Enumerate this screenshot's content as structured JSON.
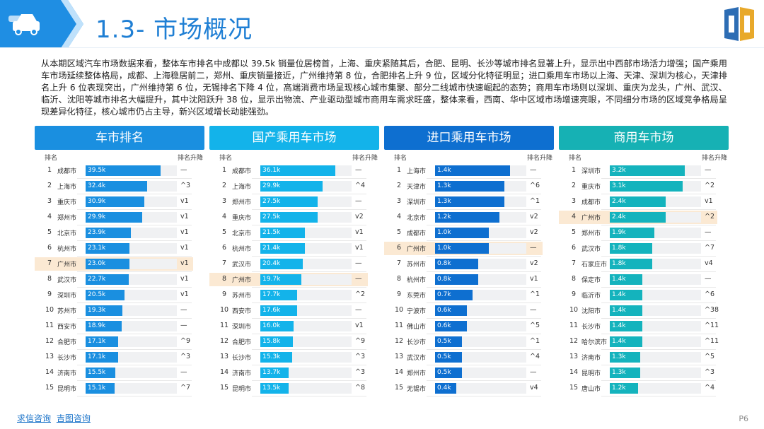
{
  "header": {
    "title": "1.3- 市场概况",
    "colors": {
      "accent": "#1f7fd4",
      "band": "#1f8ee3"
    }
  },
  "intro": "从本期区域汽车市场数据来看，整体车市排名中成都以 39.5k 销量位居榜首，上海、重庆紧随其后，合肥、昆明、长沙等城市排名显著上升，显示出中西部市场活力增强；国产乘用车市场延续整体格局，成都、上海稳居前二，郑州、重庆销量接近，广州维持第 8 位，合肥排名上升 9 位，区域分化特征明显；进口乘用车市场以上海、天津、深圳为核心，天津排名上升 6 位表现突出，广州维持第 6 位，无锡排名下降 4 位，高端消费市场呈现核心城市集聚、部分二线城市快速崛起的态势；商用车市场则以深圳、重庆为龙头，广州、武汉、临沂、沈阳等城市排名大幅提升，其中沈阳跃升 38 位，显示出物流、产业驱动型城市商用车需求旺盛，整体来看，西南、华中区域市场增速亮眼，不同细分市场的区域竞争格局呈现差异化特征，核心城市仍占主导，新兴区域增长动能强劲。",
  "col_rank": "排名",
  "col_change": "排名升降",
  "panels": [
    {
      "title": "车市排名",
      "max": 39.5,
      "head_color": "#1a8fe0",
      "bar_color": "#1a8fe0",
      "rows": [
        {
          "rank": "1",
          "city": "成都市",
          "label": "39.5k",
          "value": 39.5,
          "change": "—"
        },
        {
          "rank": "2",
          "city": "上海市",
          "label": "32.4k",
          "value": 32.4,
          "change": "^3"
        },
        {
          "rank": "3",
          "city": "重庆市",
          "label": "30.9k",
          "value": 30.9,
          "change": "v1"
        },
        {
          "rank": "4",
          "city": "郑州市",
          "label": "29.9k",
          "value": 29.9,
          "change": "v1"
        },
        {
          "rank": "5",
          "city": "北京市",
          "label": "23.9k",
          "value": 23.9,
          "change": "v1"
        },
        {
          "rank": "6",
          "city": "杭州市",
          "label": "23.1k",
          "value": 23.1,
          "change": "v1"
        },
        {
          "rank": "7",
          "city": "广州市",
          "label": "23.0k",
          "value": 23.0,
          "change": "v1",
          "highlight": true
        },
        {
          "rank": "8",
          "city": "武汉市",
          "label": "22.7k",
          "value": 22.7,
          "change": "v1"
        },
        {
          "rank": "9",
          "city": "深圳市",
          "label": "20.5k",
          "value": 20.5,
          "change": "v1"
        },
        {
          "rank": "10",
          "city": "苏州市",
          "label": "19.3k",
          "value": 19.3,
          "change": "—"
        },
        {
          "rank": "11",
          "city": "西安市",
          "label": "18.9k",
          "value": 18.9,
          "change": "—"
        },
        {
          "rank": "12",
          "city": "合肥市",
          "label": "17.1k",
          "value": 17.1,
          "change": "^9"
        },
        {
          "rank": "13",
          "city": "长沙市",
          "label": "17.1k",
          "value": 17.1,
          "change": "^3"
        },
        {
          "rank": "14",
          "city": "济南市",
          "label": "15.5k",
          "value": 15.5,
          "change": "—"
        },
        {
          "rank": "15",
          "city": "昆明市",
          "label": "15.1k",
          "value": 15.1,
          "change": "^7"
        }
      ]
    },
    {
      "title": "国产乘用车市场",
      "max": 36.1,
      "head_color": "#13b3ea",
      "bar_color": "#13b3ea",
      "rows": [
        {
          "rank": "1",
          "city": "成都市",
          "label": "36.1k",
          "value": 36.1,
          "change": "—"
        },
        {
          "rank": "2",
          "city": "上海市",
          "label": "29.9k",
          "value": 29.9,
          "change": "^4"
        },
        {
          "rank": "3",
          "city": "郑州市",
          "label": "27.5k",
          "value": 27.5,
          "change": "—"
        },
        {
          "rank": "4",
          "city": "重庆市",
          "label": "27.5k",
          "value": 27.5,
          "change": "v2"
        },
        {
          "rank": "5",
          "city": "北京市",
          "label": "21.5k",
          "value": 21.5,
          "change": "v1"
        },
        {
          "rank": "6",
          "city": "杭州市",
          "label": "21.4k",
          "value": 21.4,
          "change": "v1"
        },
        {
          "rank": "7",
          "city": "武汉市",
          "label": "20.4k",
          "value": 20.4,
          "change": "—"
        },
        {
          "rank": "8",
          "city": "广州市",
          "label": "19.7k",
          "value": 19.7,
          "change": "—",
          "highlight": true
        },
        {
          "rank": "9",
          "city": "苏州市",
          "label": "17.7k",
          "value": 17.7,
          "change": "^2"
        },
        {
          "rank": "10",
          "city": "西安市",
          "label": "17.6k",
          "value": 17.6,
          "change": "—"
        },
        {
          "rank": "11",
          "city": "深圳市",
          "label": "16.0k",
          "value": 16.0,
          "change": "v1"
        },
        {
          "rank": "12",
          "city": "合肥市",
          "label": "15.8k",
          "value": 15.8,
          "change": "^9"
        },
        {
          "rank": "13",
          "city": "长沙市",
          "label": "15.3k",
          "value": 15.3,
          "change": "^3"
        },
        {
          "rank": "14",
          "city": "济南市",
          "label": "13.7k",
          "value": 13.7,
          "change": "^3"
        },
        {
          "rank": "15",
          "city": "昆明市",
          "label": "13.5k",
          "value": 13.5,
          "change": "^8"
        }
      ]
    },
    {
      "title": "进口乘用车市场",
      "max": 1.4,
      "head_color": "#0e6fd0",
      "bar_color": "#0e6fd0",
      "rows": [
        {
          "rank": "1",
          "city": "上海市",
          "label": "1.4k",
          "value": 1.4,
          "change": "—"
        },
        {
          "rank": "2",
          "city": "天津市",
          "label": "1.3k",
          "value": 1.3,
          "change": "^6"
        },
        {
          "rank": "3",
          "city": "深圳市",
          "label": "1.3k",
          "value": 1.3,
          "change": "^1"
        },
        {
          "rank": "4",
          "city": "北京市",
          "label": "1.2k",
          "value": 1.2,
          "change": "v2"
        },
        {
          "rank": "5",
          "city": "成都市",
          "label": "1.0k",
          "value": 1.0,
          "change": "v2"
        },
        {
          "rank": "6",
          "city": "广州市",
          "label": "1.0k",
          "value": 1.0,
          "change": "—",
          "highlight": true
        },
        {
          "rank": "7",
          "city": "苏州市",
          "label": "0.8k",
          "value": 0.8,
          "change": "v2"
        },
        {
          "rank": "8",
          "city": "杭州市",
          "label": "0.8k",
          "value": 0.8,
          "change": "v1"
        },
        {
          "rank": "9",
          "city": "东莞市",
          "label": "0.7k",
          "value": 0.7,
          "change": "^1"
        },
        {
          "rank": "10",
          "city": "宁波市",
          "label": "0.6k",
          "value": 0.6,
          "change": "—"
        },
        {
          "rank": "11",
          "city": "佛山市",
          "label": "0.6k",
          "value": 0.6,
          "change": "^5"
        },
        {
          "rank": "12",
          "city": "长沙市",
          "label": "0.5k",
          "value": 0.5,
          "change": "^1"
        },
        {
          "rank": "13",
          "city": "武汉市",
          "label": "0.5k",
          "value": 0.5,
          "change": "^4"
        },
        {
          "rank": "14",
          "city": "郑州市",
          "label": "0.5k",
          "value": 0.5,
          "change": "—"
        },
        {
          "rank": "15",
          "city": "无锡市",
          "label": "0.4k",
          "value": 0.4,
          "change": "v4"
        }
      ]
    },
    {
      "title": "商用车市场",
      "max": 3.2,
      "head_color": "#16b1b4",
      "bar_color": "#14b3bd",
      "rows": [
        {
          "rank": "1",
          "city": "深圳市",
          "label": "3.2k",
          "value": 3.2,
          "change": "—"
        },
        {
          "rank": "2",
          "city": "重庆市",
          "label": "3.1k",
          "value": 3.1,
          "change": "^2"
        },
        {
          "rank": "3",
          "city": "成都市",
          "label": "2.4k",
          "value": 2.4,
          "change": "v1"
        },
        {
          "rank": "4",
          "city": "广州市",
          "label": "2.4k",
          "value": 2.4,
          "change": "^2",
          "highlight": true
        },
        {
          "rank": "5",
          "city": "郑州市",
          "label": "1.9k",
          "value": 1.9,
          "change": "—"
        },
        {
          "rank": "6",
          "city": "武汉市",
          "label": "1.8k",
          "value": 1.8,
          "change": "^7"
        },
        {
          "rank": "7",
          "city": "石家庄市",
          "label": "1.8k",
          "value": 1.8,
          "change": "v4"
        },
        {
          "rank": "8",
          "city": "保定市",
          "label": "1.4k",
          "value": 1.4,
          "change": "—"
        },
        {
          "rank": "9",
          "city": "临沂市",
          "label": "1.4k",
          "value": 1.4,
          "change": "^6"
        },
        {
          "rank": "10",
          "city": "沈阳市",
          "label": "1.4k",
          "value": 1.4,
          "change": "^38"
        },
        {
          "rank": "11",
          "city": "长沙市",
          "label": "1.4k",
          "value": 1.4,
          "change": "^11"
        },
        {
          "rank": "12",
          "city": "哈尔滨市",
          "label": "1.4k",
          "value": 1.4,
          "change": "^11"
        },
        {
          "rank": "13",
          "city": "济南市",
          "label": "1.3k",
          "value": 1.3,
          "change": "^5"
        },
        {
          "rank": "14",
          "city": "昆明市",
          "label": "1.3k",
          "value": 1.3,
          "change": "^3"
        },
        {
          "rank": "15",
          "city": "唐山市",
          "label": "1.2k",
          "value": 1.2,
          "change": "^4"
        }
      ]
    }
  ],
  "footer": {
    "link1": "求信咨询",
    "link2": "吉图咨询",
    "page": "P6"
  }
}
